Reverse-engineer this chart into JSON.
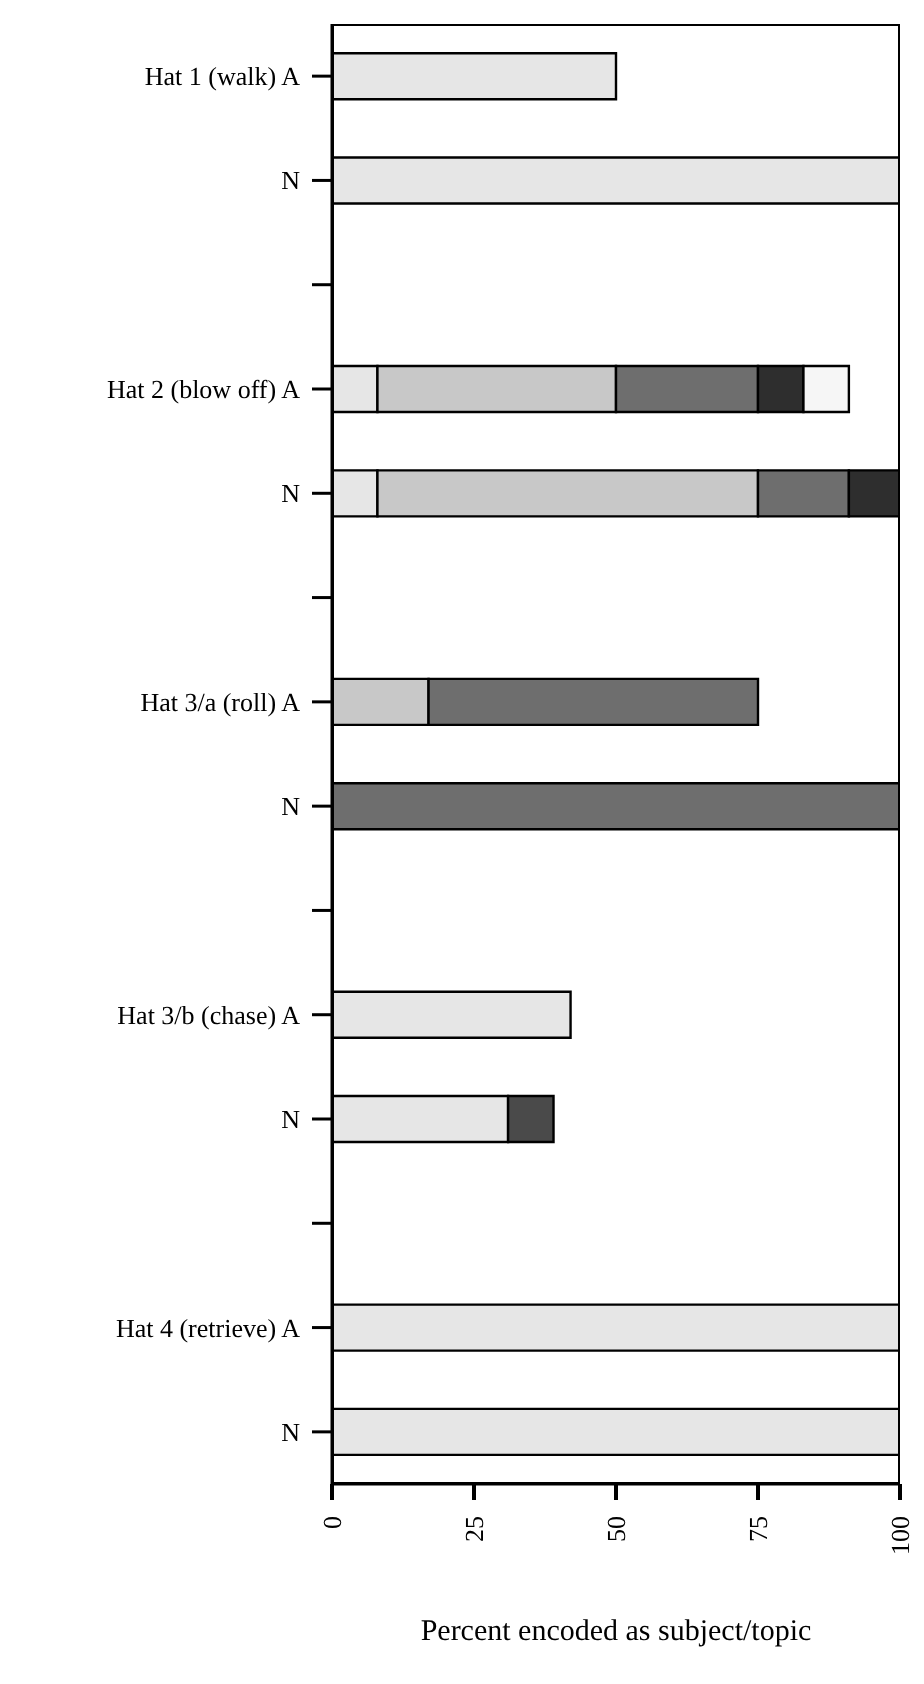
{
  "chart_data": {
    "type": "bar",
    "orientation": "horizontal",
    "stacked": true,
    "xlabel": "Percent encoded as subject/topic",
    "categories": [
      "Hat 1 (walk)  A",
      "N",
      null,
      "Hat 2 (blow off)  A",
      "N",
      null,
      "Hat 3/a (roll)  A",
      "N",
      null,
      "Hat 3/b (chase)  A",
      "N",
      null,
      "Hat 4 (retrieve)  A",
      "N"
    ],
    "series": [
      {
        "color": "#e6e6e6",
        "values": [
          50,
          100,
          null,
          8,
          8,
          null,
          0,
          0,
          null,
          42,
          31,
          null,
          100,
          100
        ]
      },
      {
        "color": "#c8c8c8",
        "values": [
          0,
          0,
          null,
          42,
          67,
          null,
          17,
          0,
          null,
          0,
          0,
          null,
          0,
          0
        ]
      },
      {
        "color": "#6e6e6e",
        "values": [
          0,
          0,
          null,
          25,
          16,
          null,
          58,
          100,
          null,
          0,
          0,
          null,
          0,
          0
        ]
      },
      {
        "color": "#2e2e2e",
        "values": [
          0,
          0,
          null,
          8,
          9,
          null,
          0,
          0,
          null,
          0,
          0,
          null,
          0,
          0
        ]
      },
      {
        "color": "#f6f6f6",
        "values": [
          0,
          0,
          null,
          8,
          0,
          null,
          0,
          0,
          null,
          0,
          0,
          null,
          0,
          0
        ]
      },
      {
        "color": "#4a4a4a",
        "values": [
          0,
          0,
          null,
          0,
          0,
          null,
          0,
          0,
          null,
          0,
          8,
          null,
          0,
          0
        ]
      }
    ],
    "xlim": [
      0,
      100
    ],
    "xticks": [
      0,
      25,
      50,
      75,
      100
    ],
    "grid": false,
    "legend": false
  }
}
